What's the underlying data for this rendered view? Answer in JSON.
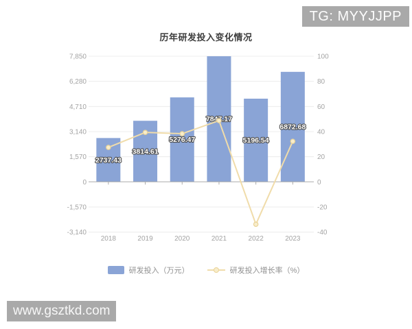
{
  "overlay": {
    "badge": "TG: MYYJJPP",
    "watermark": "www.gsztkd.com"
  },
  "chart_data": {
    "type": "bar",
    "title": "历年研发投入变化情况",
    "categories": [
      "2018",
      "2019",
      "2020",
      "2021",
      "2022",
      "2023"
    ],
    "series": [
      {
        "name": "研发投入（万元）",
        "type": "bar",
        "axis": "left",
        "values": [
          2737.43,
          3814.61,
          5276.47,
          7847.17,
          5196.54,
          6872.68
        ],
        "labels": [
          "2737.43",
          "3814.61",
          "5276.47",
          "7847.17",
          "5196.54",
          "6872.68"
        ],
        "color": "#8aa4d6"
      },
      {
        "name": "研发投入增长率（%）",
        "type": "line",
        "axis": "right",
        "values": [
          27.4,
          39.35,
          38.32,
          48.72,
          -33.78,
          32.26
        ],
        "color": "#f0dcaa",
        "marker_fill": "#f8edcb",
        "marker_stroke": "#e9d296"
      }
    ],
    "left_axis": {
      "min": -3140,
      "max": 7850,
      "ticks": [
        7850,
        6280,
        4710,
        3140,
        1570,
        0,
        -1570,
        -3140
      ],
      "tick_labels": [
        "7,850",
        "6,280",
        "4,710",
        "3,140",
        "1,570",
        "0",
        "-1,570",
        "-3,140"
      ]
    },
    "right_axis": {
      "min": -40,
      "max": 100,
      "ticks": [
        100,
        80,
        60,
        40,
        20,
        0,
        -20,
        -40
      ],
      "tick_labels": [
        "100",
        "80",
        "60",
        "40",
        "20",
        "0",
        "-20",
        "-40"
      ]
    },
    "grid_color": "#ececec",
    "zero_axis_color": "#aaaaaa",
    "legend_position": "bottom"
  }
}
